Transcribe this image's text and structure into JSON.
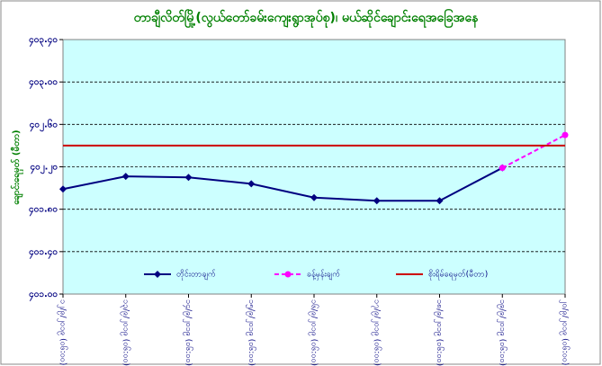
{
  "chart_data": {
    "type": "line",
    "title": "တာချီလိတ်မြို့(လွယ်တော်ခမ်းကျေးရွာအုပ်စု)၊ မယ်ဆိုင်ချောင်းရေအခြေအနေ",
    "y_label": "ချောင်းရေမှတ် (မီတာ)",
    "categories": [
      "၁၂/၉/၂၀၁၉ (၀၆:၀၀)",
      "၁၃/၉/၂၀၁၉ (၀၆:၀၀)",
      "၁၄/၉/၂၀၁၉ (၀၆:၀၀)",
      "၁၅/၉/၂၀၁၉ (၀၆:၀၀)",
      "၁၆/၉/၂၀၁၉ (၀၆:၀၀)",
      "၁၇/၉/၂၀၁၉ (၀၆:၀၀)",
      "၁၈/၉/၂၀၁၉ (၀၆:၀၀)",
      "၁၉/၉/၂၀၁၉ (၀၆:၀၀)",
      "၂၀/၉/၂၀၁၉ (၀၆:၀၀)"
    ],
    "series": [
      {
        "name": "တိုင်းတာချက်",
        "color": "#000080",
        "style": "solid",
        "marker": "diamond",
        "values": [
          401.99,
          402.11,
          402.1,
          402.04,
          401.91,
          401.88,
          401.88,
          402.19,
          null
        ]
      },
      {
        "name": "ခန့်မှန်းချက်",
        "color": "#ff00ff",
        "style": "dashed",
        "marker": "circle",
        "values": [
          null,
          null,
          null,
          null,
          null,
          null,
          null,
          402.19,
          402.5
        ]
      },
      {
        "name": "စိုးရိမ်ရေမှတ်(မီတာ)",
        "color": "#cc0000",
        "style": "solid",
        "marker": "none",
        "values": [
          402.4,
          402.4,
          402.4,
          402.4,
          402.4,
          402.4,
          402.4,
          402.4,
          402.4
        ]
      }
    ],
    "ylim": [
      401.0,
      403.4
    ],
    "yticks": [
      {
        "value": 401.0,
        "label": "၄၀၁.၀၀"
      },
      {
        "value": 401.4,
        "label": "၄၀၁.၄၀"
      },
      {
        "value": 401.8,
        "label": "၄၀၁.၈၀"
      },
      {
        "value": 402.2,
        "label": "၄၀၂.၂၀"
      },
      {
        "value": 402.6,
        "label": "၄၀၂.၆၀"
      },
      {
        "value": 403.0,
        "label": "၄၀၃.၀၀"
      },
      {
        "value": 403.4,
        "label": "၄၀၃.၄၀"
      }
    ],
    "grid": true,
    "legend": "bottom"
  }
}
